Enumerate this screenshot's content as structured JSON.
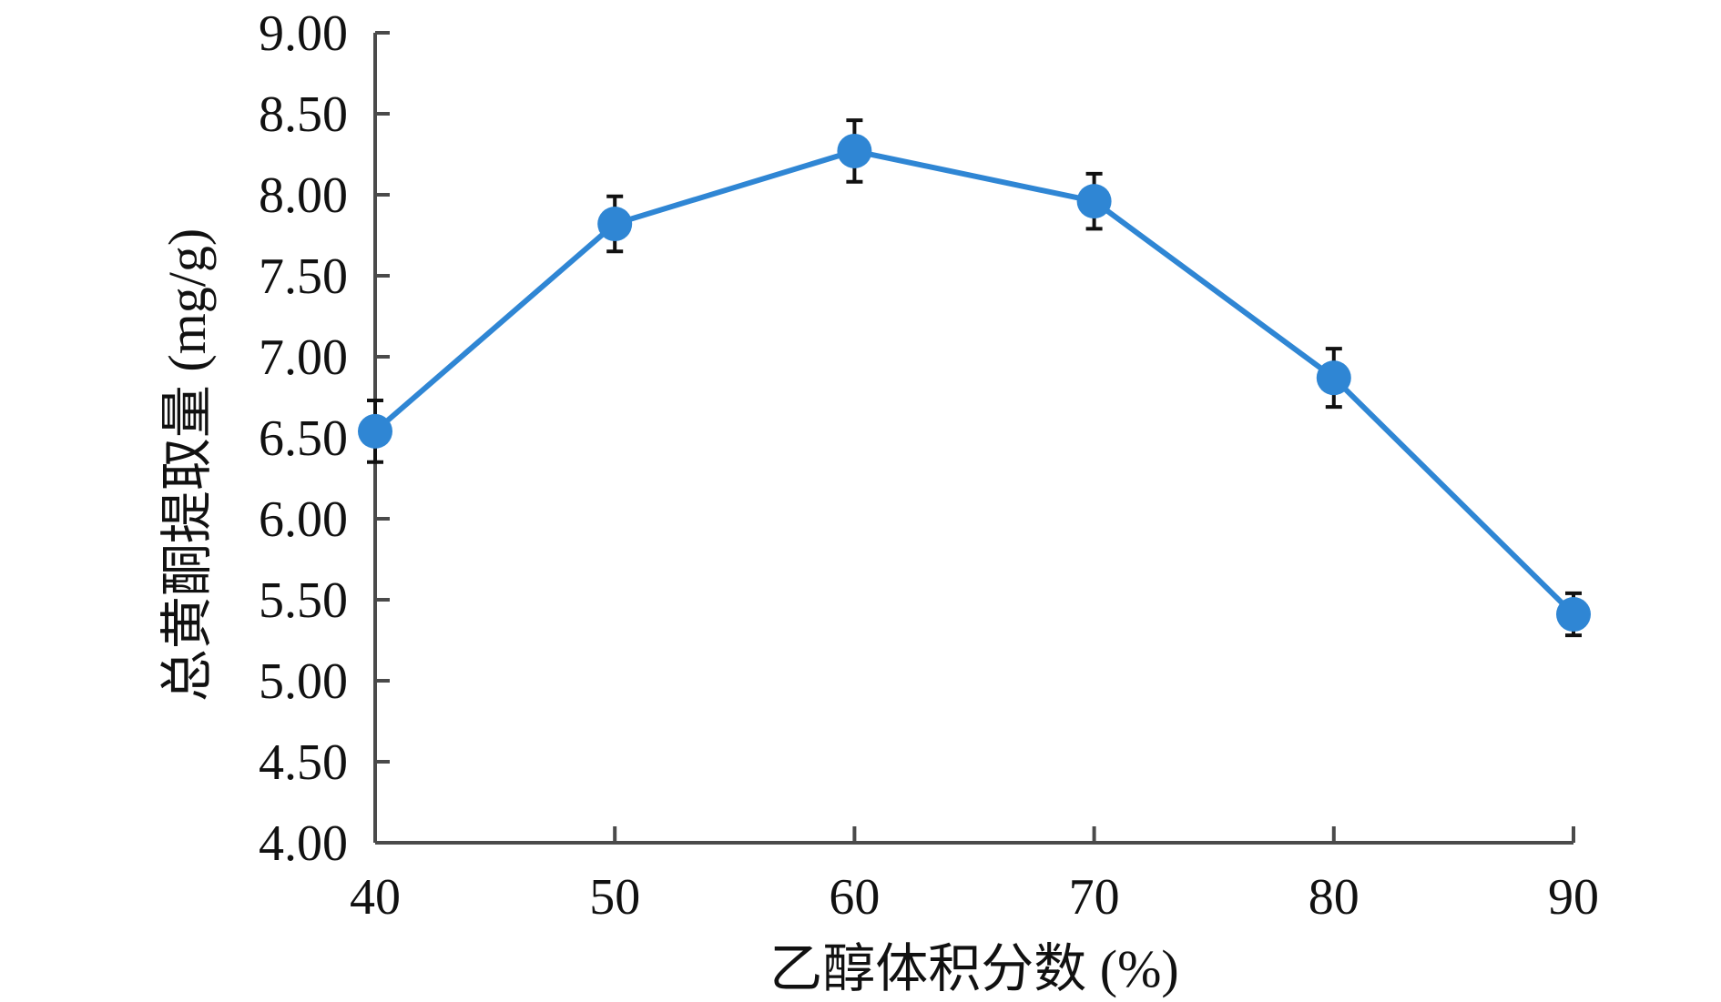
{
  "chart_data": {
    "type": "line",
    "title": "",
    "xlabel": "乙醇体积分数 (%)",
    "ylabel": "总黄酮提取量 (mg/g)",
    "x": [
      40,
      50,
      60,
      70,
      80,
      90
    ],
    "x_tick_labels": [
      "40",
      "50",
      "60",
      "70",
      "80",
      "90"
    ],
    "y_tick_labels": [
      "4.00",
      "4.50",
      "5.00",
      "5.50",
      "6.00",
      "6.50",
      "7.00",
      "7.50",
      "8.00",
      "8.50",
      "9.00"
    ],
    "xlim": [
      40,
      90
    ],
    "ylim": [
      4.0,
      9.0
    ],
    "grid": false,
    "legend": "none",
    "series": [
      {
        "values": [
          6.54,
          7.82,
          8.27,
          7.96,
          6.87,
          5.41
        ],
        "errors": [
          0.19,
          0.17,
          0.19,
          0.17,
          0.18,
          0.13
        ],
        "color": "#2f86d4",
        "marker": "circle"
      }
    ]
  }
}
